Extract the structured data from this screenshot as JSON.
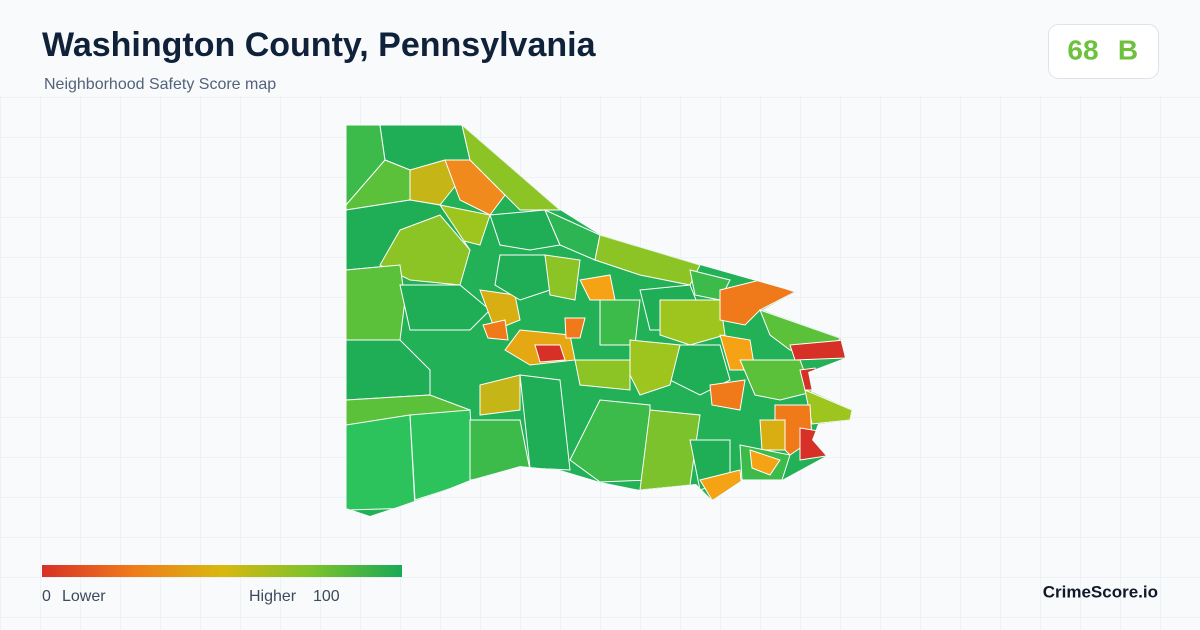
{
  "header": {
    "title": "Washington County, Pennsylvania",
    "subtitle": "Neighborhood Safety Score map"
  },
  "score": {
    "value": 68,
    "grade": "B"
  },
  "legend": {
    "min": 0,
    "min_label": "Lower",
    "max_label": "Higher",
    "max": 100
  },
  "brand": "CrimeScore.io"
}
